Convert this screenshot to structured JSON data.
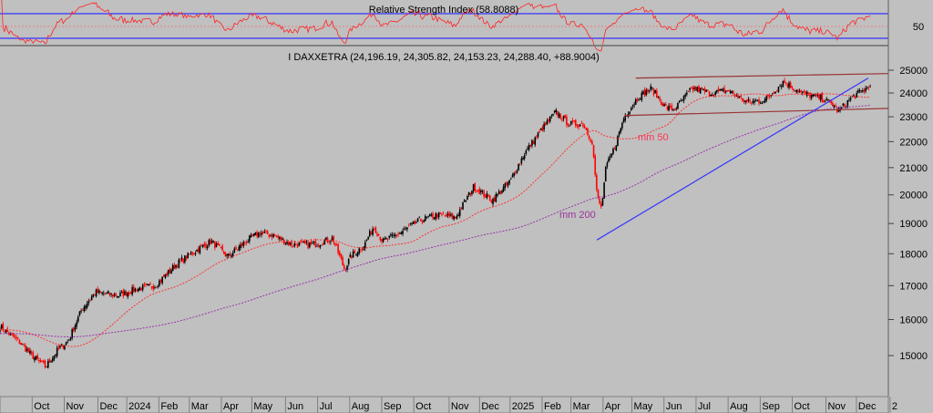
{
  "chart_data": {
    "type": "candlestick",
    "title": "I DAXXETRA (24,196.19, 24,305.82, 24,153.23, 24,288.40, +88.9004)",
    "scale": "log",
    "ylim": [
      14300,
      25600
    ],
    "y_ticks": [
      "25000",
      "24000",
      "23000",
      "22000",
      "21000",
      "20000",
      "19000",
      "18000",
      "17000",
      "16000",
      "15000"
    ],
    "x_ticks": [
      "ep",
      "Oct",
      "Nov",
      "Dec",
      "2024",
      "Feb",
      "Mar",
      "Apr",
      "May",
      "Jun",
      "Jul",
      "Aug",
      "Sep",
      "Oct",
      "Nov",
      "Dec",
      "2025",
      "Feb",
      "Mar",
      "Apr",
      "May",
      "Jun",
      "Jul",
      "Aug",
      "Sep",
      "Oct",
      "Nov",
      "Dec",
      "2"
    ],
    "x_unit": "months since Sep 2023",
    "close_path": [
      [
        0.23,
        15800
      ],
      [
        0.8,
        15400
      ],
      [
        1.22,
        15000
      ],
      [
        1.65,
        14700
      ],
      [
        2.07,
        15200
      ],
      [
        2.36,
        15400
      ],
      [
        2.78,
        16300
      ],
      [
        3.2,
        16800
      ],
      [
        3.92,
        16700
      ],
      [
        4.49,
        16900
      ],
      [
        5.06,
        17000
      ],
      [
        5.77,
        17700
      ],
      [
        6.48,
        18200
      ],
      [
        6.82,
        18400
      ],
      [
        7.33,
        17900
      ],
      [
        7.9,
        18400
      ],
      [
        8.32,
        18700
      ],
      [
        8.75,
        18600
      ],
      [
        9.32,
        18300
      ],
      [
        10.03,
        18300
      ],
      [
        10.6,
        18500
      ],
      [
        10.97,
        17500
      ],
      [
        11.16,
        17900
      ],
      [
        11.59,
        18300
      ],
      [
        11.88,
        18900
      ],
      [
        12.16,
        18400
      ],
      [
        12.73,
        18700
      ],
      [
        13.3,
        19100
      ],
      [
        13.86,
        19300
      ],
      [
        14.43,
        19200
      ],
      [
        15.0,
        20300
      ],
      [
        15.57,
        19800
      ],
      [
        16.14,
        20500
      ],
      [
        16.56,
        21500
      ],
      [
        17.13,
        22500
      ],
      [
        17.56,
        23200
      ],
      [
        17.98,
        22700
      ],
      [
        18.41,
        22700
      ],
      [
        18.69,
        22000
      ],
      [
        18.84,
        20000
      ],
      [
        18.98,
        19500
      ],
      [
        19.12,
        21000
      ],
      [
        19.4,
        21800
      ],
      [
        19.69,
        23000
      ],
      [
        20.11,
        23800
      ],
      [
        20.54,
        24200
      ],
      [
        20.97,
        23400
      ],
      [
        21.25,
        23300
      ],
      [
        21.82,
        24200
      ],
      [
        22.39,
        24000
      ],
      [
        22.95,
        24100
      ],
      [
        23.52,
        23600
      ],
      [
        24.09,
        23700
      ],
      [
        24.66,
        24500
      ],
      [
        25.23,
        24000
      ],
      [
        25.8,
        23800
      ],
      [
        26.22,
        23500
      ],
      [
        26.36,
        23200
      ],
      [
        26.78,
        23800
      ],
      [
        27.36,
        24288.4
      ]
    ],
    "moving_averages": [
      {
        "name": "mm 50",
        "period": 50,
        "color": "#ff3333"
      },
      {
        "name": "mm 200",
        "period": 200,
        "color": "#9933aa"
      }
    ],
    "trendlines": [
      {
        "name": "upper-channel",
        "from": [
          20.05,
          24650
        ],
        "to": [
          27.93,
          24850
        ],
        "color": "#993333"
      },
      {
        "name": "lower-channel",
        "from": [
          19.7,
          23050
        ],
        "to": [
          27.93,
          23350
        ],
        "color": "#993333"
      },
      {
        "name": "support-trendline",
        "from": [
          18.84,
          18450
        ],
        "to": [
          27.3,
          24650
        ],
        "color": "#3333ff"
      }
    ],
    "rsi": {
      "title": "Relative Strength Index (58.8088)",
      "period": 14,
      "levels": [
        70,
        30
      ],
      "mid_label": "50"
    },
    "colors": {
      "up": "#000000",
      "down": "#ff0000",
      "background": "#c0c0c0"
    }
  }
}
